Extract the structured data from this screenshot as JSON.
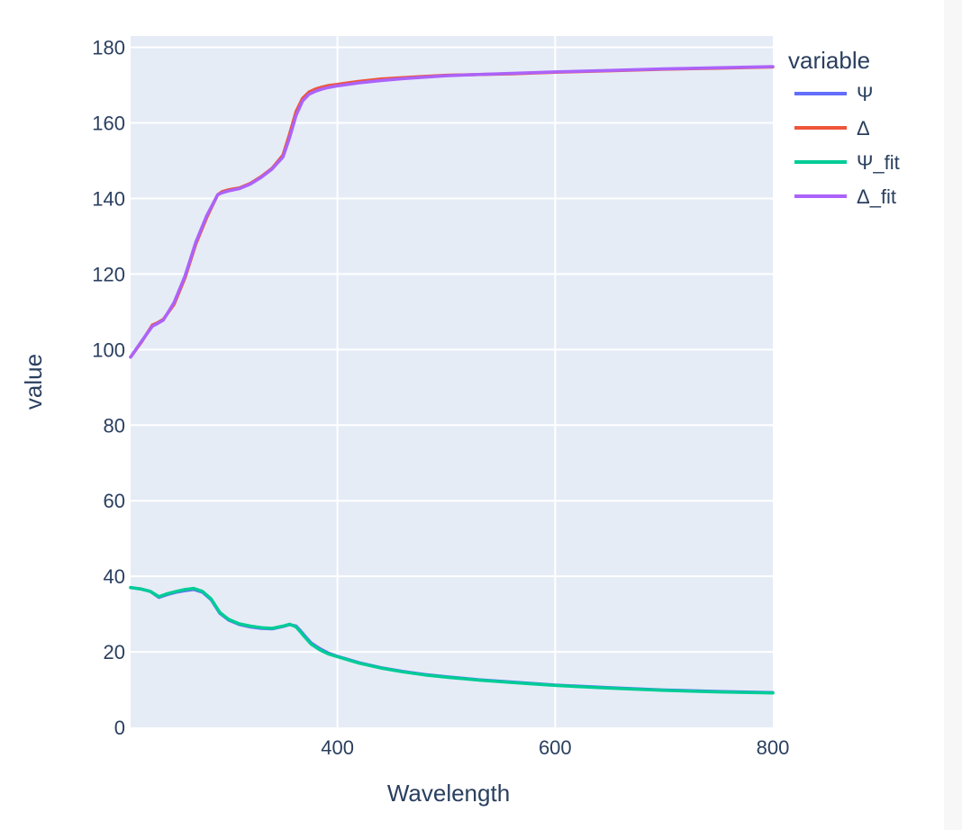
{
  "chart_data": {
    "type": "line",
    "title": "",
    "xlabel": "Wavelength",
    "ylabel": "value",
    "xlim": [
      210,
      800
    ],
    "ylim": [
      0,
      183
    ],
    "x_ticks": [
      400,
      600,
      800
    ],
    "y_ticks": [
      0,
      20,
      40,
      60,
      80,
      100,
      120,
      140,
      160,
      180
    ],
    "grid": true,
    "legend": {
      "title": "variable",
      "placement": "top-right-outside"
    },
    "series": [
      {
        "name": "Ψ",
        "color": "#636efa",
        "x": [
          210,
          220,
          228,
          236,
          244,
          252,
          260,
          268,
          276,
          284,
          292,
          300,
          310,
          320,
          330,
          340,
          350,
          356,
          362,
          366,
          370,
          376,
          384,
          392,
          400,
          420,
          440,
          460,
          480,
          500,
          530,
          560,
          600,
          650,
          700,
          750,
          800
        ],
        "y": [
          37.0,
          36.6,
          36.0,
          34.4,
          35.2,
          35.8,
          36.2,
          36.5,
          35.8,
          33.8,
          30.2,
          28.4,
          27.2,
          26.6,
          26.2,
          26.1,
          26.7,
          27.2,
          26.8,
          25.6,
          24.2,
          22.3,
          20.8,
          19.6,
          18.8,
          17.1,
          15.8,
          14.8,
          14.0,
          13.4,
          12.6,
          12.0,
          11.2,
          10.5,
          9.9,
          9.5,
          9.2
        ]
      },
      {
        "name": "Δ",
        "color": "#ef553b",
        "x": [
          210,
          220,
          230,
          234,
          240,
          250,
          260,
          270,
          280,
          290,
          294,
          300,
          310,
          320,
          330,
          340,
          350,
          356,
          362,
          368,
          374,
          380,
          386,
          392,
          400,
          420,
          440,
          460,
          480,
          500,
          530,
          560,
          600,
          650,
          700,
          750,
          800
        ],
        "y": [
          98.0,
          102.0,
          106.5,
          107.0,
          108.0,
          112.0,
          119.0,
          128.0,
          135.0,
          141.0,
          141.8,
          142.3,
          142.8,
          144.0,
          145.8,
          148.0,
          151.5,
          157.0,
          163.0,
          166.5,
          168.2,
          169.0,
          169.5,
          169.9,
          170.2,
          171.0,
          171.6,
          172.0,
          172.3,
          172.6,
          172.8,
          173.0,
          173.4,
          173.8,
          174.2,
          174.5,
          174.8
        ]
      },
      {
        "name": "Ψ_fit",
        "color": "#00cc96",
        "x": [
          210,
          220,
          228,
          236,
          244,
          252,
          260,
          268,
          276,
          284,
          292,
          300,
          310,
          320,
          330,
          340,
          350,
          356,
          362,
          366,
          370,
          376,
          384,
          392,
          400,
          420,
          440,
          460,
          480,
          500,
          530,
          560,
          600,
          650,
          700,
          750,
          800
        ],
        "y": [
          37.0,
          36.6,
          36.0,
          34.6,
          35.4,
          36.0,
          36.5,
          36.8,
          36.0,
          34.0,
          30.4,
          28.6,
          27.4,
          26.8,
          26.4,
          26.2,
          26.8,
          27.3,
          26.6,
          25.3,
          23.9,
          22.0,
          20.5,
          19.4,
          18.7,
          17.0,
          15.7,
          14.7,
          13.9,
          13.3,
          12.5,
          11.9,
          11.1,
          10.4,
          9.8,
          9.4,
          9.1
        ]
      },
      {
        "name": "Δ_fit",
        "color": "#ab63fa",
        "x": [
          210,
          220,
          230,
          234,
          240,
          250,
          260,
          270,
          280,
          290,
          294,
          300,
          310,
          320,
          330,
          340,
          350,
          356,
          362,
          368,
          374,
          380,
          386,
          392,
          400,
          420,
          440,
          460,
          480,
          500,
          530,
          560,
          600,
          650,
          700,
          750,
          800
        ],
        "y": [
          98.0,
          102.2,
          106.2,
          106.8,
          107.8,
          112.5,
          119.5,
          128.5,
          135.5,
          141.0,
          141.5,
          142.0,
          142.6,
          143.8,
          145.6,
          147.8,
          151.0,
          156.0,
          162.0,
          165.8,
          167.6,
          168.4,
          169.0,
          169.4,
          169.8,
          170.6,
          171.2,
          171.7,
          172.1,
          172.5,
          172.8,
          173.1,
          173.5,
          173.9,
          174.3,
          174.6,
          174.9
        ]
      }
    ]
  }
}
